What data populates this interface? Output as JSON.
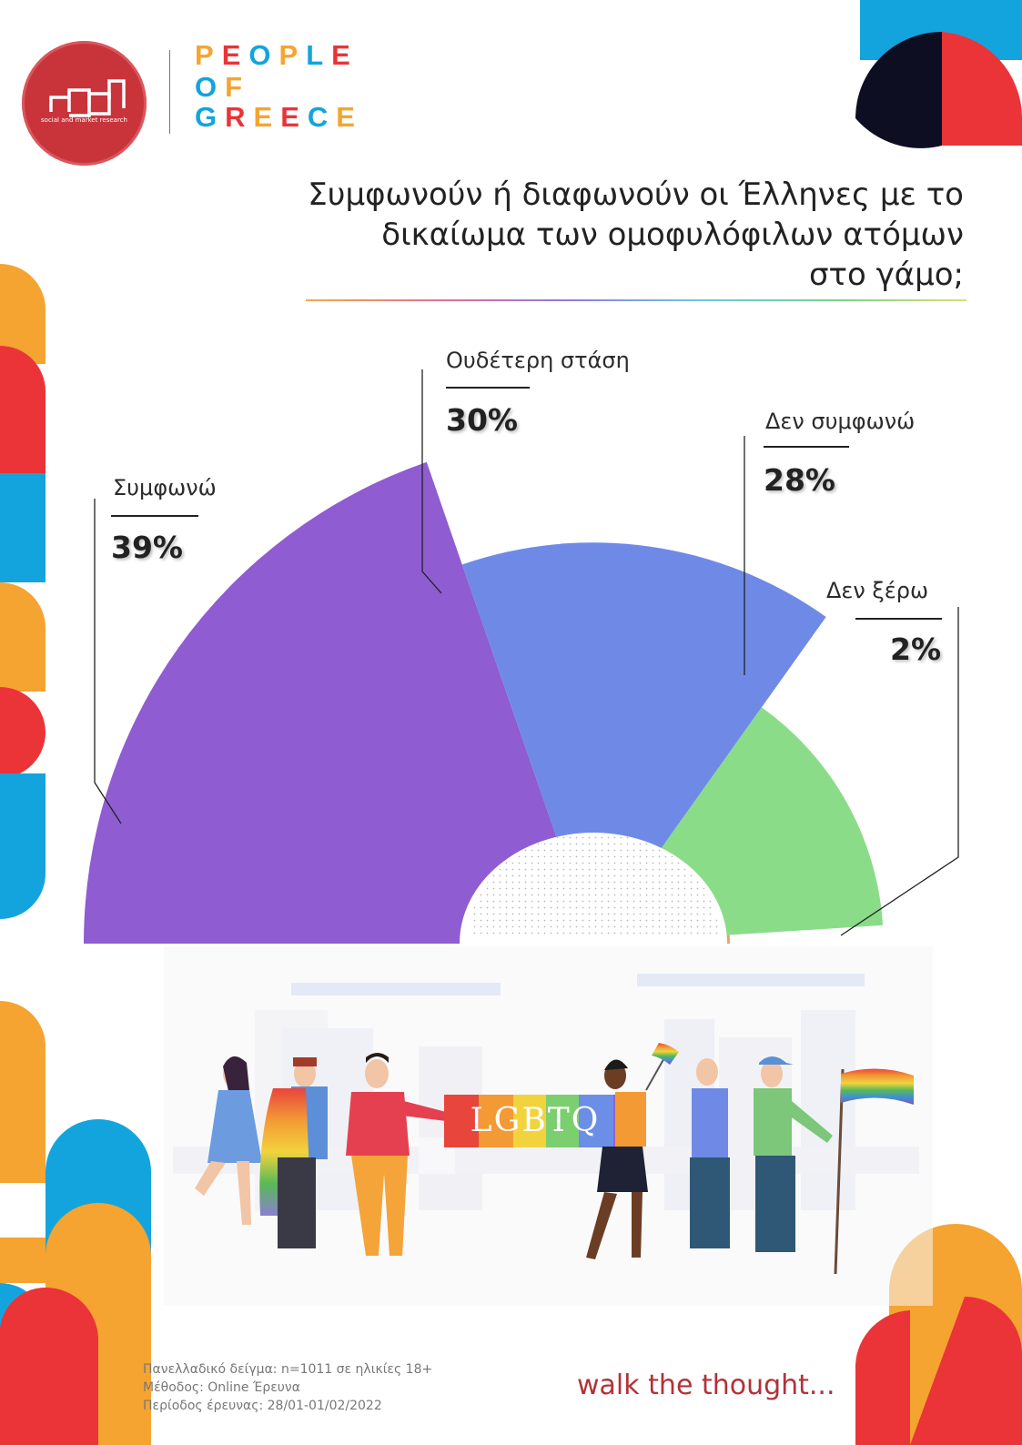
{
  "logo": {
    "small_text": "social and market research"
  },
  "brand": {
    "line1": "PEOPLE",
    "line2": "OF",
    "line3": "GREECE"
  },
  "title": {
    "line1": "Συμφωνούν ή διαφωνούν οι Έλληνες με το",
    "line2": "δικαίωμα των ομοφυλόφιλων ατόμων",
    "line3": "στο γάμο;"
  },
  "chart_data": {
    "type": "pie",
    "shape": "semicircle-rose",
    "categories": [
      "Συμφωνώ",
      "Ουδέτερη στάση",
      "Δεν συμφωνώ",
      "Δεν ξέρω"
    ],
    "values": [
      39,
      30,
      28,
      2
    ],
    "value_labels": [
      "39%",
      "30%",
      "28%",
      "2%"
    ],
    "colors": [
      "#8f5cd1",
      "#6f8ae6",
      "#8adc89",
      "#f0a06a"
    ]
  },
  "banner": {
    "text": "LGBTQ"
  },
  "footer": {
    "line1": "Πανελλαδικό δείγμα: n=1011 σε ηλικίες 18+",
    "line2": "Μέθοδος: Online Έρευνα",
    "line3": "Περίοδος έρευνας: 28/01-01/02/2022"
  },
  "tagline": "walk the thought..."
}
